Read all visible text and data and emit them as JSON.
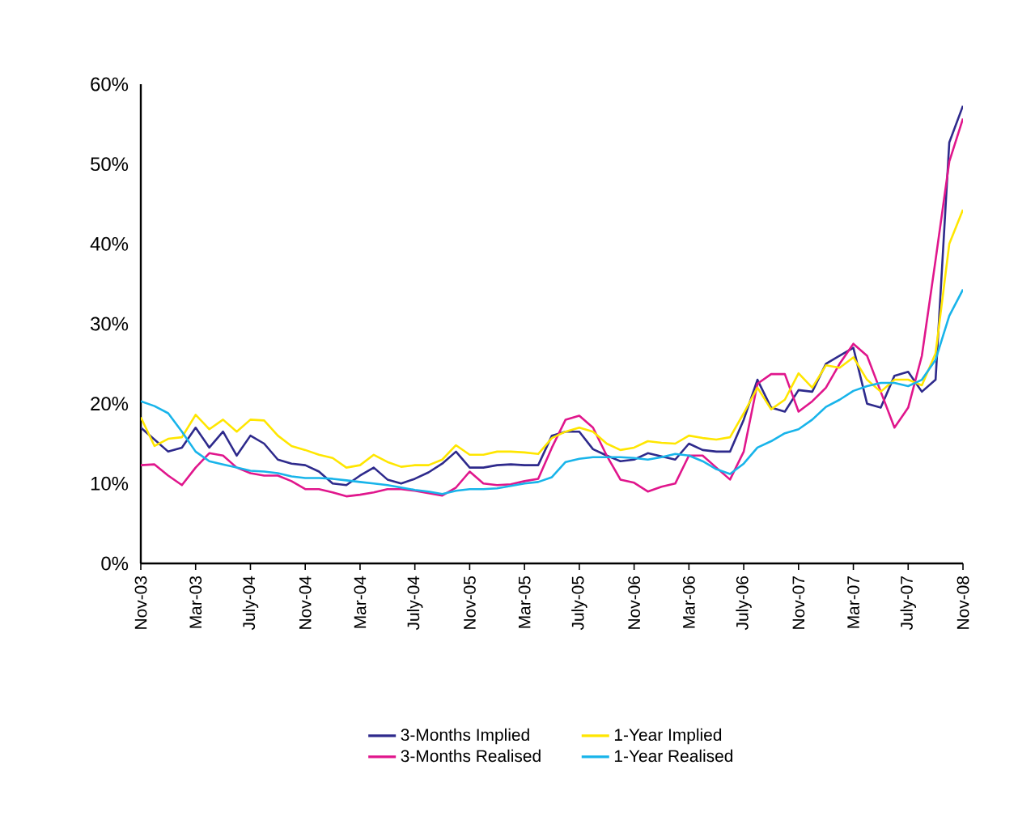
{
  "chart_data": {
    "type": "line",
    "legend": "bottom",
    "grid": false,
    "categories": [
      "Nov-03",
      null,
      null,
      null,
      "Mar-03",
      null,
      null,
      null,
      "July-04",
      null,
      null,
      null,
      "Nov-04",
      null,
      null,
      null,
      "Mar-04",
      null,
      null,
      null,
      "July-04",
      null,
      null,
      null,
      "Nov-05",
      null,
      null,
      null,
      "Mar-05",
      null,
      null,
      null,
      "July-05",
      null,
      null,
      null,
      "Nov-06",
      null,
      null,
      null,
      "Mar-06",
      null,
      null,
      null,
      "July-06",
      null,
      null,
      null,
      "Nov-07",
      null,
      null,
      null,
      "Mar-07",
      null,
      null,
      null,
      "July-07",
      null,
      null,
      null,
      "Nov-08"
    ],
    "ylim": [
      0,
      60
    ],
    "yticks": [
      {
        "value": 0,
        "label": "0%"
      },
      {
        "value": 10,
        "label": "10%"
      },
      {
        "value": 20,
        "label": "20%"
      },
      {
        "value": 30,
        "label": "30%"
      },
      {
        "value": 40,
        "label": "40%"
      },
      {
        "value": 50,
        "label": "50%"
      },
      {
        "value": 60,
        "label": "60%"
      }
    ],
    "series": [
      {
        "name": "3-Months Implied",
        "color": "#2e2a8c",
        "values": [
          17,
          15.5,
          14,
          14.5,
          17,
          14.5,
          16.5,
          13.5,
          16,
          15,
          13,
          12.5,
          12.3,
          11.5,
          10,
          9.8,
          11,
          12,
          10.5,
          10,
          10.6,
          11.4,
          12.5,
          14,
          12,
          12,
          12.3,
          12.4,
          12.3,
          12.3,
          16,
          16.5,
          16.5,
          14.3,
          13.5,
          12.8,
          13,
          13.8,
          13.4,
          13,
          15,
          14.2,
          14,
          14,
          18,
          23,
          19.5,
          19,
          21.7,
          21.5,
          25,
          26,
          27,
          20,
          19.5,
          23.5,
          24,
          21.5,
          23,
          52.7,
          57.3
        ]
      },
      {
        "name": "3-Months Realised",
        "color": "#e0168c",
        "values": [
          12.3,
          12.4,
          11,
          9.8,
          12,
          13.8,
          13.5,
          12,
          11.3,
          11,
          11,
          10.3,
          9.3,
          9.3,
          8.9,
          8.4,
          8.6,
          8.9,
          9.3,
          9.3,
          9.1,
          8.8,
          8.5,
          9.5,
          11.5,
          10,
          9.8,
          9.9,
          10.3,
          10.6,
          14.5,
          18,
          18.5,
          17,
          13.5,
          10.5,
          10.1,
          9,
          9.6,
          10,
          13.5,
          13.5,
          12,
          10.5,
          14,
          22.5,
          23.7,
          23.7,
          19,
          20.3,
          22,
          25,
          27.5,
          26,
          21.5,
          17,
          19.5,
          26,
          38,
          50.3,
          55.7
        ]
      },
      {
        "name": "1-Year Implied",
        "color": "#ffe600",
        "values": [
          18.3,
          14.7,
          15.6,
          15.8,
          18.6,
          16.8,
          18,
          16.5,
          18,
          17.9,
          16,
          14.7,
          14.2,
          13.6,
          13.2,
          12,
          12.3,
          13.6,
          12.7,
          12.1,
          12.3,
          12.3,
          13,
          14.8,
          13.6,
          13.6,
          14,
          14,
          13.9,
          13.7,
          15.7,
          16.5,
          17,
          16.5,
          15,
          14.2,
          14.5,
          15.3,
          15.1,
          15,
          16,
          15.7,
          15.5,
          15.8,
          18.8,
          22,
          19.3,
          20.5,
          23.8,
          22,
          24.8,
          24.5,
          25.8,
          23,
          21.5,
          23,
          23,
          22.3,
          26.3,
          40,
          44.3
        ]
      },
      {
        "name": "1-Year Realised",
        "color": "#18b4ea",
        "values": [
          20.3,
          19.7,
          18.8,
          16.5,
          14,
          12.8,
          12.4,
          12,
          11.6,
          11.5,
          11.3,
          10.9,
          10.7,
          10.7,
          10.6,
          10.4,
          10.2,
          10,
          9.8,
          9.5,
          9.2,
          9,
          8.7,
          9.1,
          9.3,
          9.3,
          9.4,
          9.7,
          10,
          10.2,
          10.8,
          12.7,
          13.1,
          13.3,
          13.3,
          13.3,
          13.2,
          13,
          13.3,
          13.7,
          13.5,
          12.8,
          11.8,
          11.2,
          12.5,
          14.5,
          15.3,
          16.3,
          16.8,
          18,
          19.6,
          20.5,
          21.6,
          22.2,
          22.6,
          22.6,
          22.2,
          23,
          25.5,
          31,
          34.3
        ]
      }
    ]
  }
}
